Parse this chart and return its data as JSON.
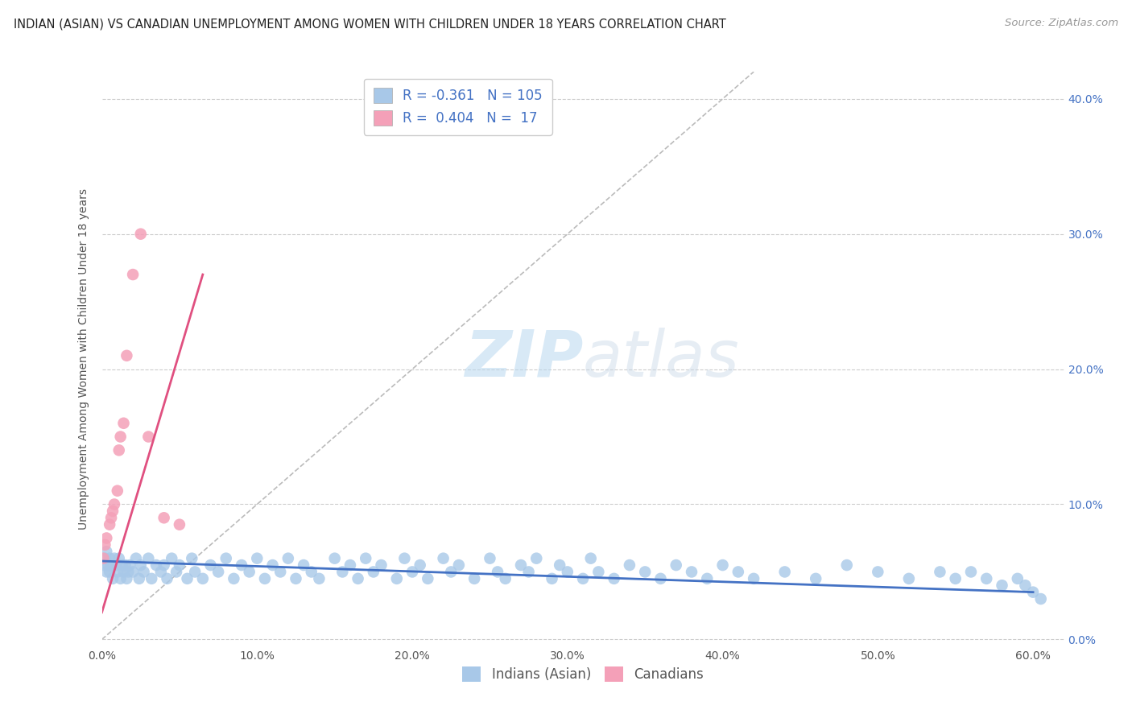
{
  "title": "INDIAN (ASIAN) VS CANADIAN UNEMPLOYMENT AMONG WOMEN WITH CHILDREN UNDER 18 YEARS CORRELATION CHART",
  "source": "Source: ZipAtlas.com",
  "ylabel": "Unemployment Among Women with Children Under 18 years",
  "watermark_zip": "ZIP",
  "watermark_atlas": "atlas",
  "R_indian": -0.361,
  "N_indian": 105,
  "R_canadian": 0.404,
  "N_canadian": 17,
  "xlim": [
    0.0,
    0.62
  ],
  "ylim": [
    -0.005,
    0.42
  ],
  "xticks": [
    0.0,
    0.1,
    0.2,
    0.3,
    0.4,
    0.5,
    0.6
  ],
  "yticks": [
    0.0,
    0.1,
    0.2,
    0.3,
    0.4
  ],
  "color_indian": "#a8c8e8",
  "color_canadian": "#f4a0b8",
  "color_indian_line": "#4472c4",
  "color_canadian_line": "#e05080",
  "background_color": "#ffffff",
  "title_fontsize": 10.5,
  "source_fontsize": 9.5,
  "axis_label_fontsize": 10,
  "tick_fontsize": 10,
  "legend_fontsize": 12,
  "indian_trend_x": [
    0.0,
    0.6
  ],
  "indian_trend_y": [
    0.058,
    0.035
  ],
  "canadian_trend_x": [
    0.0,
    0.065
  ],
  "canadian_trend_y": [
    0.02,
    0.27
  ],
  "ref_line_x": [
    0.0,
    0.42
  ],
  "ref_line_y": [
    0.0,
    0.42
  ],
  "indian_x": [
    0.001,
    0.002,
    0.003,
    0.003,
    0.004,
    0.005,
    0.005,
    0.006,
    0.007,
    0.008,
    0.009,
    0.01,
    0.011,
    0.012,
    0.013,
    0.014,
    0.015,
    0.016,
    0.017,
    0.018,
    0.02,
    0.022,
    0.024,
    0.025,
    0.027,
    0.03,
    0.032,
    0.035,
    0.038,
    0.04,
    0.042,
    0.045,
    0.048,
    0.05,
    0.055,
    0.058,
    0.06,
    0.065,
    0.07,
    0.075,
    0.08,
    0.085,
    0.09,
    0.095,
    0.1,
    0.105,
    0.11,
    0.115,
    0.12,
    0.125,
    0.13,
    0.135,
    0.14,
    0.15,
    0.155,
    0.16,
    0.165,
    0.17,
    0.175,
    0.18,
    0.19,
    0.195,
    0.2,
    0.205,
    0.21,
    0.22,
    0.225,
    0.23,
    0.24,
    0.25,
    0.255,
    0.26,
    0.27,
    0.275,
    0.28,
    0.29,
    0.295,
    0.3,
    0.31,
    0.315,
    0.32,
    0.33,
    0.34,
    0.35,
    0.36,
    0.37,
    0.38,
    0.39,
    0.4,
    0.41,
    0.42,
    0.44,
    0.46,
    0.48,
    0.5,
    0.52,
    0.54,
    0.55,
    0.56,
    0.57,
    0.58,
    0.59,
    0.595,
    0.6,
    0.605
  ],
  "indian_y": [
    0.055,
    0.06,
    0.05,
    0.065,
    0.055,
    0.05,
    0.06,
    0.055,
    0.045,
    0.06,
    0.055,
    0.05,
    0.06,
    0.045,
    0.055,
    0.05,
    0.055,
    0.045,
    0.05,
    0.055,
    0.05,
    0.06,
    0.045,
    0.055,
    0.05,
    0.06,
    0.045,
    0.055,
    0.05,
    0.055,
    0.045,
    0.06,
    0.05,
    0.055,
    0.045,
    0.06,
    0.05,
    0.045,
    0.055,
    0.05,
    0.06,
    0.045,
    0.055,
    0.05,
    0.06,
    0.045,
    0.055,
    0.05,
    0.06,
    0.045,
    0.055,
    0.05,
    0.045,
    0.06,
    0.05,
    0.055,
    0.045,
    0.06,
    0.05,
    0.055,
    0.045,
    0.06,
    0.05,
    0.055,
    0.045,
    0.06,
    0.05,
    0.055,
    0.045,
    0.06,
    0.05,
    0.045,
    0.055,
    0.05,
    0.06,
    0.045,
    0.055,
    0.05,
    0.045,
    0.06,
    0.05,
    0.045,
    0.055,
    0.05,
    0.045,
    0.055,
    0.05,
    0.045,
    0.055,
    0.05,
    0.045,
    0.05,
    0.045,
    0.055,
    0.05,
    0.045,
    0.05,
    0.045,
    0.05,
    0.045,
    0.04,
    0.045,
    0.04,
    0.035,
    0.03
  ],
  "canadian_x": [
    0.001,
    0.002,
    0.003,
    0.005,
    0.006,
    0.007,
    0.008,
    0.01,
    0.011,
    0.012,
    0.014,
    0.016,
    0.02,
    0.025,
    0.03,
    0.04,
    0.05
  ],
  "canadian_y": [
    0.06,
    0.07,
    0.075,
    0.085,
    0.09,
    0.095,
    0.1,
    0.11,
    0.14,
    0.15,
    0.16,
    0.21,
    0.27,
    0.3,
    0.15,
    0.09,
    0.085
  ]
}
